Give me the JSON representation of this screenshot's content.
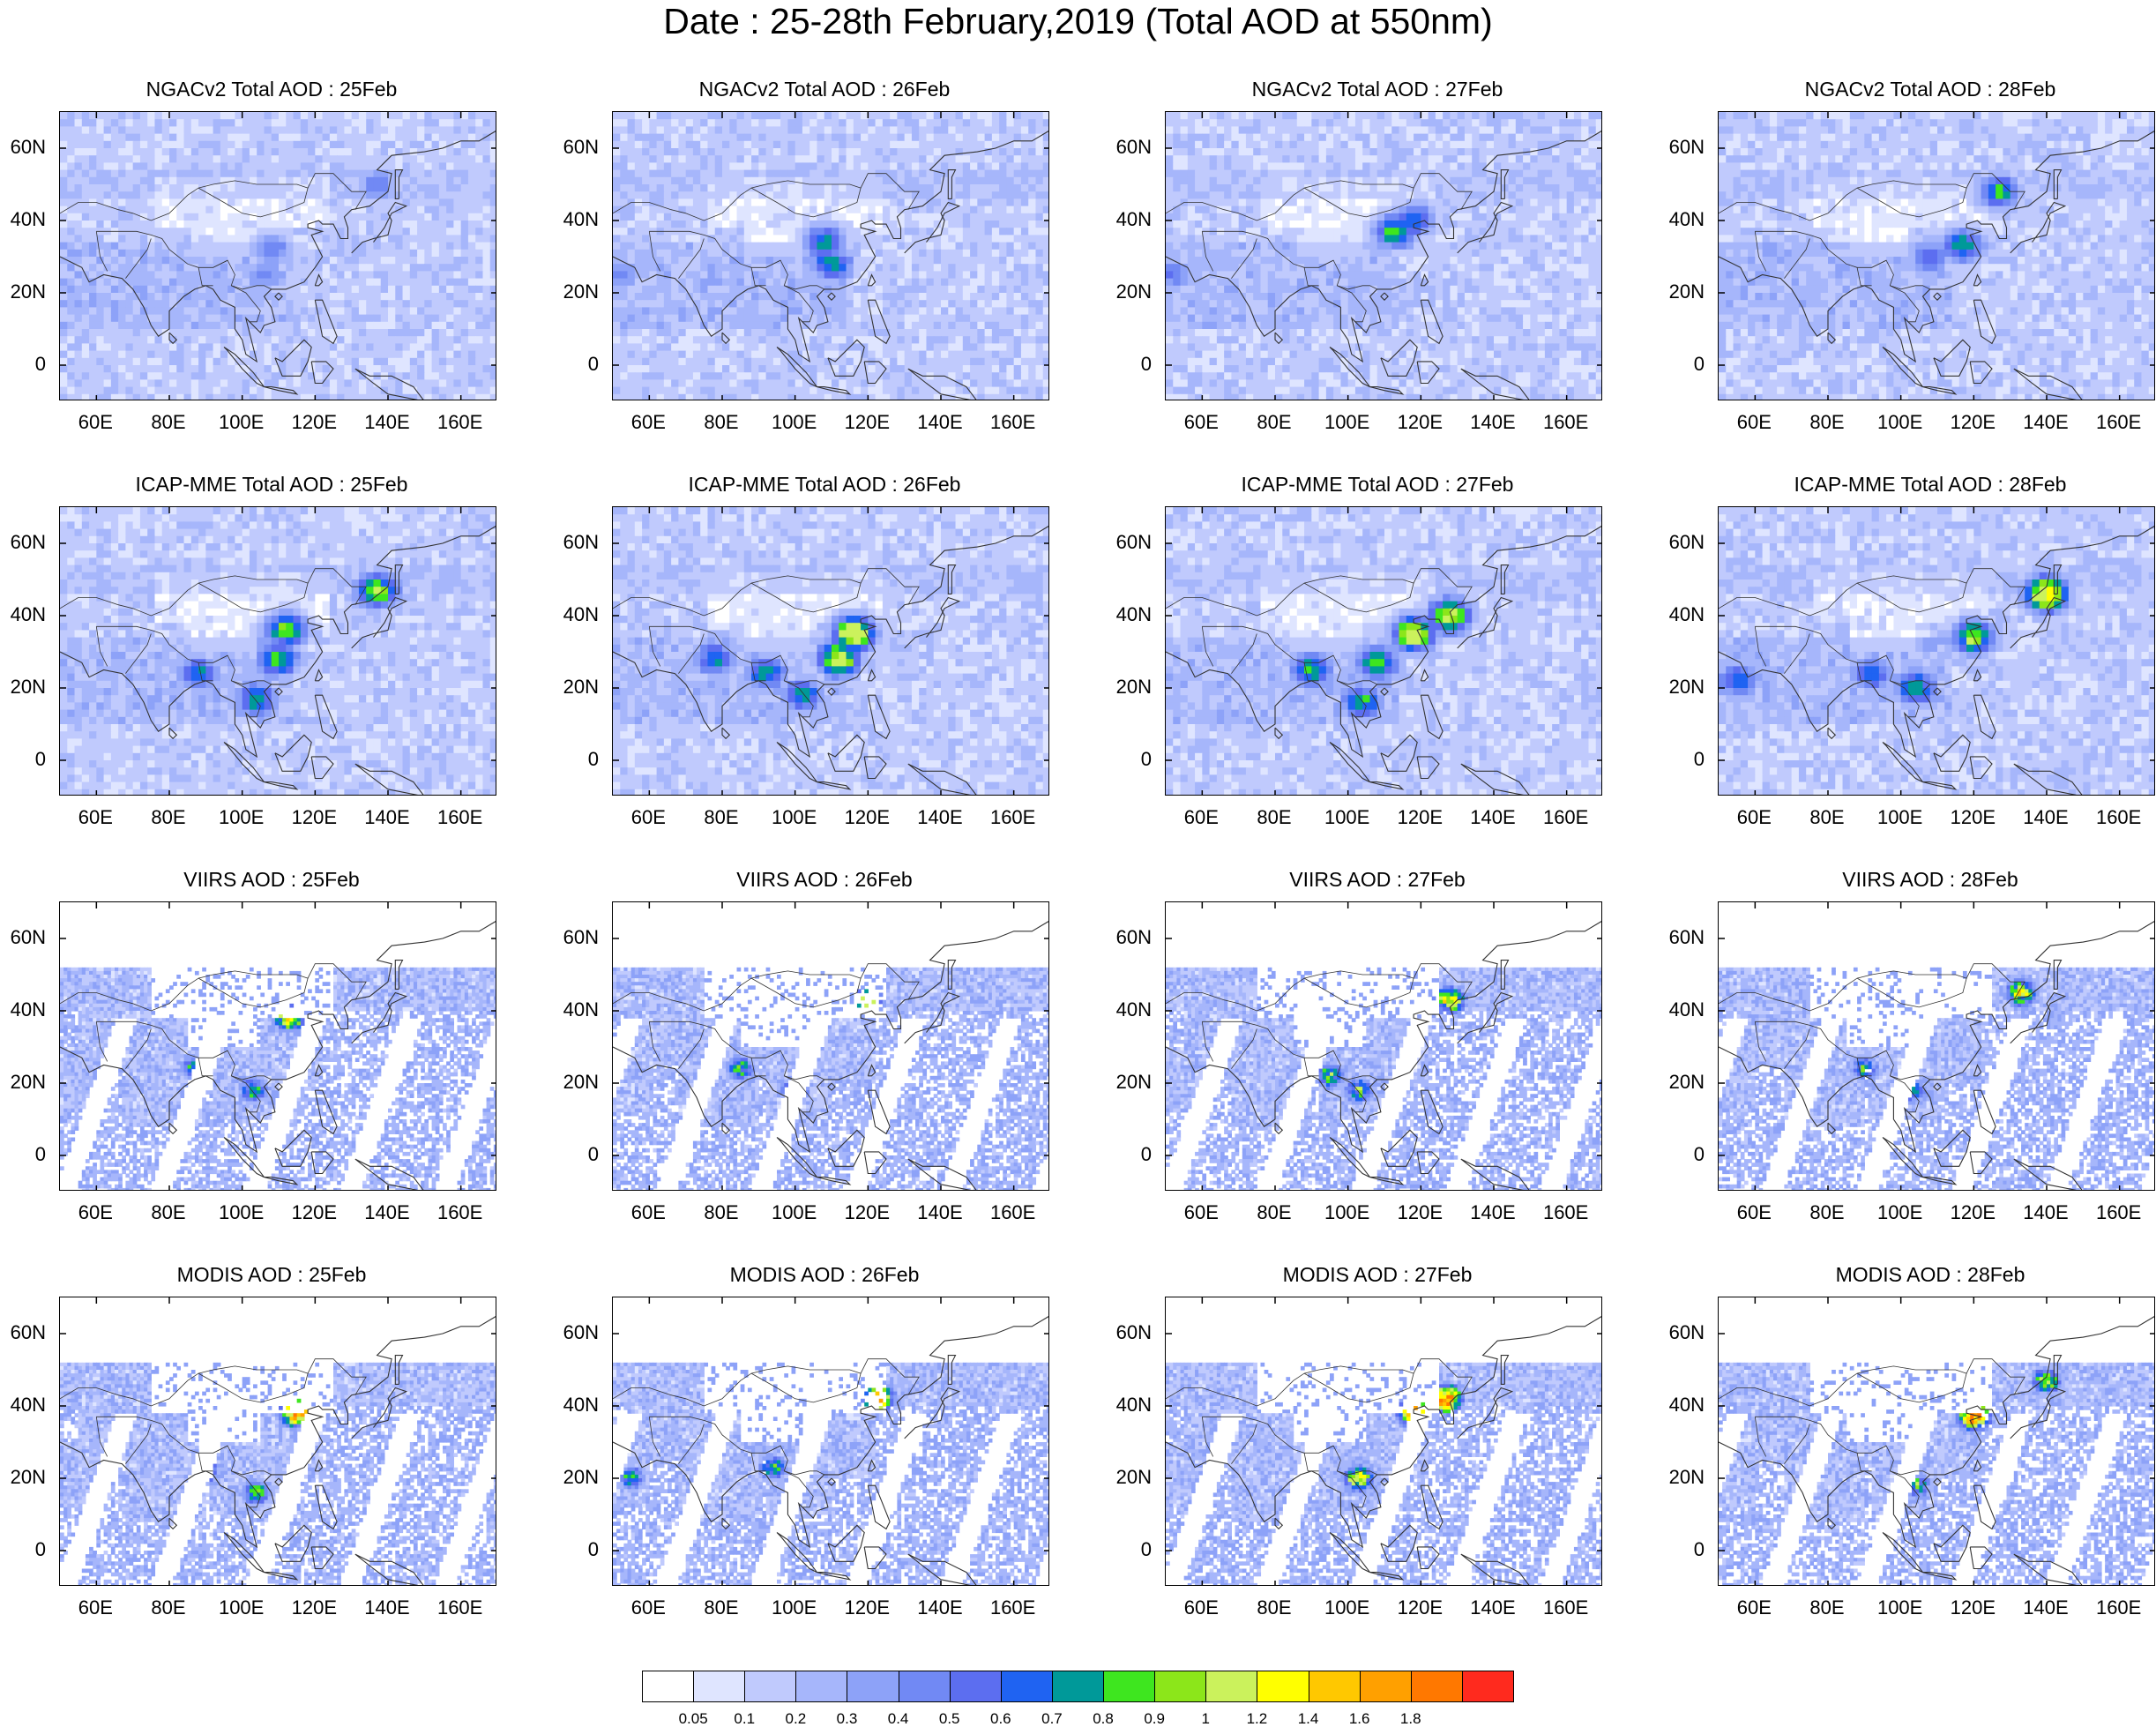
{
  "title": "Date : 25-28th February,2019 (Total AOD at 550nm)",
  "lat_labels": [
    "60N",
    "40N",
    "20N",
    "0"
  ],
  "lat_values": [
    60,
    40,
    20,
    0
  ],
  "lon_labels": [
    "60E",
    "80E",
    "100E",
    "120E",
    "140E",
    "160E"
  ],
  "lon_values": [
    60,
    80,
    100,
    120,
    140,
    160
  ],
  "colorbar": {
    "labels": [
      "0.05",
      "0.1",
      "0.2",
      "0.3",
      "0.4",
      "0.5",
      "0.6",
      "0.7",
      "0.8",
      "0.9",
      "1",
      "1.2",
      "1.4",
      "1.6",
      "1.8"
    ],
    "colors": [
      "#ffffff",
      "#dfe5ff",
      "#c0cafd",
      "#a6b6fb",
      "#8da2f8",
      "#7189f4",
      "#5c6ef0",
      "#1f63f2",
      "#009999",
      "#3ee61f",
      "#8ce61a",
      "#cbf25c",
      "#ffff00",
      "#ffc800",
      "#ffa000",
      "#ff7800",
      "#ff2a1e"
    ]
  },
  "chart_data": {
    "type": "heatmap",
    "variable": "Total AOD at 550nm",
    "xlim": [
      50,
      170
    ],
    "ylim": [
      -10,
      70
    ],
    "rows": [
      "NGACv2",
      "ICAP-MME",
      "VIIRS",
      "MODIS"
    ],
    "panels": [
      {
        "title": "NGACv2 Total AOD : 25Feb",
        "source": "model",
        "plumes": [
          {
            "lon": 108,
            "lat": 32,
            "value": 0.5
          },
          {
            "lon": 106,
            "lat": 25,
            "value": 0.45
          },
          {
            "lon": 137,
            "lat": 50,
            "value": 0.5
          }
        ]
      },
      {
        "title": "NGACv2 Total AOD : 26Feb",
        "source": "model",
        "plumes": [
          {
            "lon": 108,
            "lat": 34,
            "value": 0.75
          },
          {
            "lon": 110,
            "lat": 28,
            "value": 0.8
          },
          {
            "lon": 52,
            "lat": 25,
            "value": 0.45
          }
        ]
      },
      {
        "title": "NGACv2 Total AOD : 27Feb",
        "source": "model",
        "plumes": [
          {
            "lon": 113,
            "lat": 37,
            "value": 0.85
          },
          {
            "lon": 118,
            "lat": 40,
            "value": 0.7
          },
          {
            "lon": 52,
            "lat": 25,
            "value": 0.5
          }
        ]
      },
      {
        "title": "NGACv2 Total AOD : 28Feb",
        "source": "model",
        "plumes": [
          {
            "lon": 117,
            "lat": 33,
            "value": 0.8
          },
          {
            "lon": 127,
            "lat": 48,
            "value": 0.8
          },
          {
            "lon": 108,
            "lat": 30,
            "value": 0.6
          }
        ]
      },
      {
        "title": "ICAP-MME Total AOD : 25Feb",
        "source": "model",
        "plumes": [
          {
            "lon": 112,
            "lat": 36,
            "value": 0.95
          },
          {
            "lon": 110,
            "lat": 28,
            "value": 0.85
          },
          {
            "lon": 88,
            "lat": 24,
            "value": 0.75
          },
          {
            "lon": 104,
            "lat": 17,
            "value": 0.8
          },
          {
            "lon": 137,
            "lat": 47,
            "value": 1.0
          }
        ]
      },
      {
        "title": "ICAP-MME Total AOD : 26Feb",
        "source": "model",
        "plumes": [
          {
            "lon": 116,
            "lat": 35,
            "value": 1.25
          },
          {
            "lon": 112,
            "lat": 28,
            "value": 1.15
          },
          {
            "lon": 92,
            "lat": 24,
            "value": 0.8
          },
          {
            "lon": 78,
            "lat": 28,
            "value": 0.7
          },
          {
            "lon": 102,
            "lat": 18,
            "value": 0.75
          }
        ]
      },
      {
        "title": "ICAP-MME Total AOD : 27Feb",
        "source": "model",
        "plumes": [
          {
            "lon": 118,
            "lat": 35,
            "value": 1.2
          },
          {
            "lon": 128,
            "lat": 40,
            "value": 1.1
          },
          {
            "lon": 108,
            "lat": 27,
            "value": 0.9
          },
          {
            "lon": 90,
            "lat": 25,
            "value": 0.8
          },
          {
            "lon": 104,
            "lat": 16,
            "value": 0.8
          }
        ]
      },
      {
        "title": "ICAP-MME Total AOD : 28Feb",
        "source": "model",
        "plumes": [
          {
            "lon": 120,
            "lat": 34,
            "value": 1.0
          },
          {
            "lon": 140,
            "lat": 46,
            "value": 1.3
          },
          {
            "lon": 104,
            "lat": 20,
            "value": 0.85
          },
          {
            "lon": 55,
            "lat": 22,
            "value": 0.7
          },
          {
            "lon": 92,
            "lat": 24,
            "value": 0.7
          }
        ]
      },
      {
        "title": "VIIRS AOD : 25Feb",
        "source": "satellite",
        "plumes": [
          {
            "lon": 113,
            "lat": 38,
            "value": 1.3
          },
          {
            "lon": 103,
            "lat": 18,
            "value": 0.8
          },
          {
            "lon": 87,
            "lat": 24,
            "value": 0.75
          }
        ]
      },
      {
        "title": "VIIRS AOD : 26Feb",
        "source": "satellite",
        "plumes": [
          {
            "lon": 120,
            "lat": 43,
            "value": 1.0
          },
          {
            "lon": 85,
            "lat": 24,
            "value": 0.8
          },
          {
            "lon": 100,
            "lat": 18,
            "value": 0.8
          }
        ]
      },
      {
        "title": "VIIRS AOD : 27Feb",
        "source": "satellite",
        "plumes": [
          {
            "lon": 128,
            "lat": 43,
            "value": 1.3
          },
          {
            "lon": 95,
            "lat": 22,
            "value": 0.9
          },
          {
            "lon": 103,
            "lat": 18,
            "value": 0.85
          }
        ]
      },
      {
        "title": "VIIRS AOD : 28Feb",
        "source": "satellite",
        "plumes": [
          {
            "lon": 133,
            "lat": 45,
            "value": 1.2
          },
          {
            "lon": 103,
            "lat": 18,
            "value": 0.8
          },
          {
            "lon": 90,
            "lat": 24,
            "value": 0.75
          }
        ]
      },
      {
        "title": "MODIS AOD : 25Feb",
        "source": "satellite",
        "plumes": [
          {
            "lon": 115,
            "lat": 38,
            "value": 1.8
          },
          {
            "lon": 104,
            "lat": 16,
            "value": 0.85
          },
          {
            "lon": 90,
            "lat": 22,
            "value": 0.8
          }
        ]
      },
      {
        "title": "MODIS AOD : 26Feb",
        "source": "satellite",
        "plumes": [
          {
            "lon": 123,
            "lat": 42,
            "value": 1.4
          },
          {
            "lon": 94,
            "lat": 23,
            "value": 0.8
          },
          {
            "lon": 55,
            "lat": 20,
            "value": 0.75
          }
        ]
      },
      {
        "title": "MODIS AOD : 27Feb",
        "source": "satellite",
        "plumes": [
          {
            "lon": 127,
            "lat": 42,
            "value": 1.8
          },
          {
            "lon": 118,
            "lat": 38,
            "value": 1.6
          },
          {
            "lon": 103,
            "lat": 20,
            "value": 1.2
          }
        ]
      },
      {
        "title": "MODIS AOD : 28Feb",
        "source": "satellite",
        "plumes": [
          {
            "lon": 120,
            "lat": 37,
            "value": 1.8
          },
          {
            "lon": 140,
            "lat": 47,
            "value": 1.0
          },
          {
            "lon": 104,
            "lat": 18,
            "value": 0.85
          }
        ]
      }
    ]
  }
}
